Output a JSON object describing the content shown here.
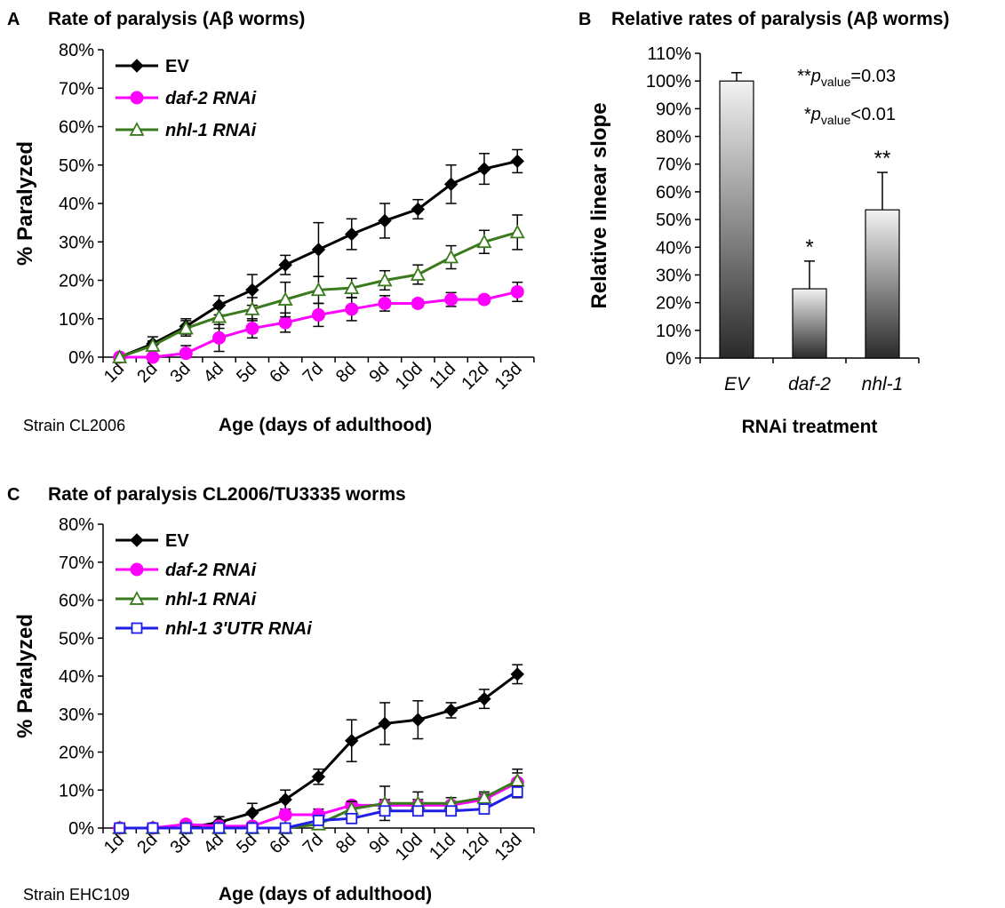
{
  "chart_data": [
    {
      "id": "A",
      "type": "line",
      "panel_letter": "A",
      "title": "Rate of paralysis (Aβ worms)",
      "xlabel": "Age (days of adulthood)",
      "ylabel": "% Paralyzed",
      "note": "Strain CL2006",
      "categories": [
        "1d",
        "2d",
        "3d",
        "4d",
        "5d",
        "6d",
        "7d",
        "8d",
        "9d",
        "10d",
        "11d",
        "12d",
        "13d"
      ],
      "ylim": [
        0,
        80
      ],
      "yticks": [
        0,
        10,
        20,
        30,
        40,
        50,
        60,
        70,
        80
      ],
      "ytick_labels": [
        "0%",
        "10%",
        "20%",
        "30%",
        "40%",
        "50%",
        "60%",
        "70%",
        "80%"
      ],
      "series": [
        {
          "name": "EV",
          "italic": false,
          "color": "#000000",
          "marker": "diamond",
          "values": [
            0,
            3.5,
            8,
            13.5,
            17.5,
            24,
            28,
            32,
            35.5,
            38.5,
            45,
            49,
            51
          ],
          "errors": [
            0,
            1.8,
            2,
            2.5,
            4,
            2.5,
            7,
            4,
            4.5,
            2.5,
            5,
            4,
            3
          ]
        },
        {
          "name": "daf-2 RNAi",
          "italic": true,
          "color": "#ff00ff",
          "marker": "circle",
          "values": [
            0,
            0,
            1,
            5,
            7.5,
            9,
            11,
            12.5,
            14,
            14,
            15,
            15,
            17
          ],
          "errors": [
            0,
            0,
            2,
            3.5,
            2.5,
            2.5,
            3,
            3,
            2,
            1,
            1.8,
            1,
            2.5
          ]
        },
        {
          "name": "nhl-1 RNAi",
          "italic": true,
          "color": "#3a7a1c",
          "marker": "triangle",
          "values": [
            0,
            3,
            7.5,
            10.5,
            12.5,
            15,
            17.5,
            18,
            20,
            21.5,
            26,
            30,
            32.5
          ],
          "errors": [
            0,
            1.2,
            2,
            3,
            3,
            4.5,
            3.5,
            2.5,
            2.5,
            2.5,
            3,
            3,
            4.5
          ]
        }
      ]
    },
    {
      "id": "B",
      "type": "bar",
      "panel_letter": "B",
      "title": "Relative rates of paralysis (Aβ worms)",
      "xlabel": "RNAi treatment",
      "ylabel": "Relative linear slope",
      "categories": [
        "EV",
        "daf-2",
        "nhl-1"
      ],
      "values": [
        100,
        25,
        53.5
      ],
      "errors": [
        3,
        10,
        13.5
      ],
      "significance": [
        "",
        "*",
        "**"
      ],
      "ylim": [
        0,
        110
      ],
      "yticks": [
        0,
        10,
        20,
        30,
        40,
        50,
        60,
        70,
        80,
        90,
        100,
        110
      ],
      "ytick_labels": [
        "0%",
        "10%",
        "20%",
        "30%",
        "40%",
        "50%",
        "60%",
        "70%",
        "80%",
        "90%",
        "100%",
        "110%"
      ],
      "pvalue_notes": [
        {
          "stars": "**",
          "p": "p",
          "sub": "value",
          "text": "=0.03"
        },
        {
          "stars": "*",
          "p": "p",
          "sub": "value",
          "text": "<0.01"
        }
      ]
    },
    {
      "id": "C",
      "type": "line",
      "panel_letter": "C",
      "title": "Rate of paralysis CL2006/TU3335 worms",
      "xlabel": "Age (days of adulthood)",
      "ylabel": "% Paralyzed",
      "note": "Strain EHC109",
      "categories": [
        "1d",
        "2d",
        "3d",
        "4d",
        "5d",
        "6d",
        "7d",
        "8d",
        "9d",
        "10d",
        "11d",
        "12d",
        "13d"
      ],
      "ylim": [
        0,
        80
      ],
      "yticks": [
        0,
        10,
        20,
        30,
        40,
        50,
        60,
        70,
        80
      ],
      "ytick_labels": [
        "0%",
        "10%",
        "20%",
        "30%",
        "40%",
        "50%",
        "60%",
        "70%",
        "80%"
      ],
      "series": [
        {
          "name": "EV",
          "italic": false,
          "color": "#000000",
          "marker": "diamond",
          "values": [
            0,
            0,
            0,
            1.5,
            4,
            7.5,
            13.5,
            23,
            27.5,
            28.5,
            31,
            34,
            40.5
          ],
          "errors": [
            0,
            0,
            0,
            1.5,
            2.5,
            2.5,
            2,
            5.5,
            5.5,
            5,
            2,
            2.5,
            2.5
          ]
        },
        {
          "name": "daf-2 RNAi",
          "italic": true,
          "color": "#ff00ff",
          "marker": "circle",
          "values": [
            0,
            0,
            1,
            0.5,
            0.5,
            3.5,
            3.5,
            6,
            6,
            6,
            6,
            7.5,
            12
          ],
          "errors": [
            0,
            0,
            0.5,
            0.5,
            0.5,
            1,
            1.5,
            1,
            1.5,
            1.5,
            1,
            1.5,
            2.5
          ]
        },
        {
          "name": "nhl-1 RNAi",
          "italic": true,
          "color": "#3a7a1c",
          "marker": "triangle",
          "values": [
            0,
            0,
            0,
            0,
            0,
            0,
            1,
            5,
            6.5,
            6.5,
            6.5,
            8,
            12.5
          ],
          "errors": [
            0,
            0,
            0,
            0,
            0,
            0,
            1,
            2,
            4.5,
            3,
            1.5,
            1.5,
            3
          ]
        },
        {
          "name": "nhl-1 3'UTR RNAi",
          "italic": true,
          "color": "#1e1ee6",
          "marker": "square",
          "values": [
            0,
            0,
            0,
            0,
            0,
            0,
            2,
            2.5,
            4.5,
            4.5,
            4.5,
            5,
            9.5
          ],
          "errors": [
            0,
            0,
            0,
            0,
            0,
            0,
            1,
            1,
            1,
            1,
            1,
            1,
            1.5
          ]
        }
      ]
    }
  ]
}
